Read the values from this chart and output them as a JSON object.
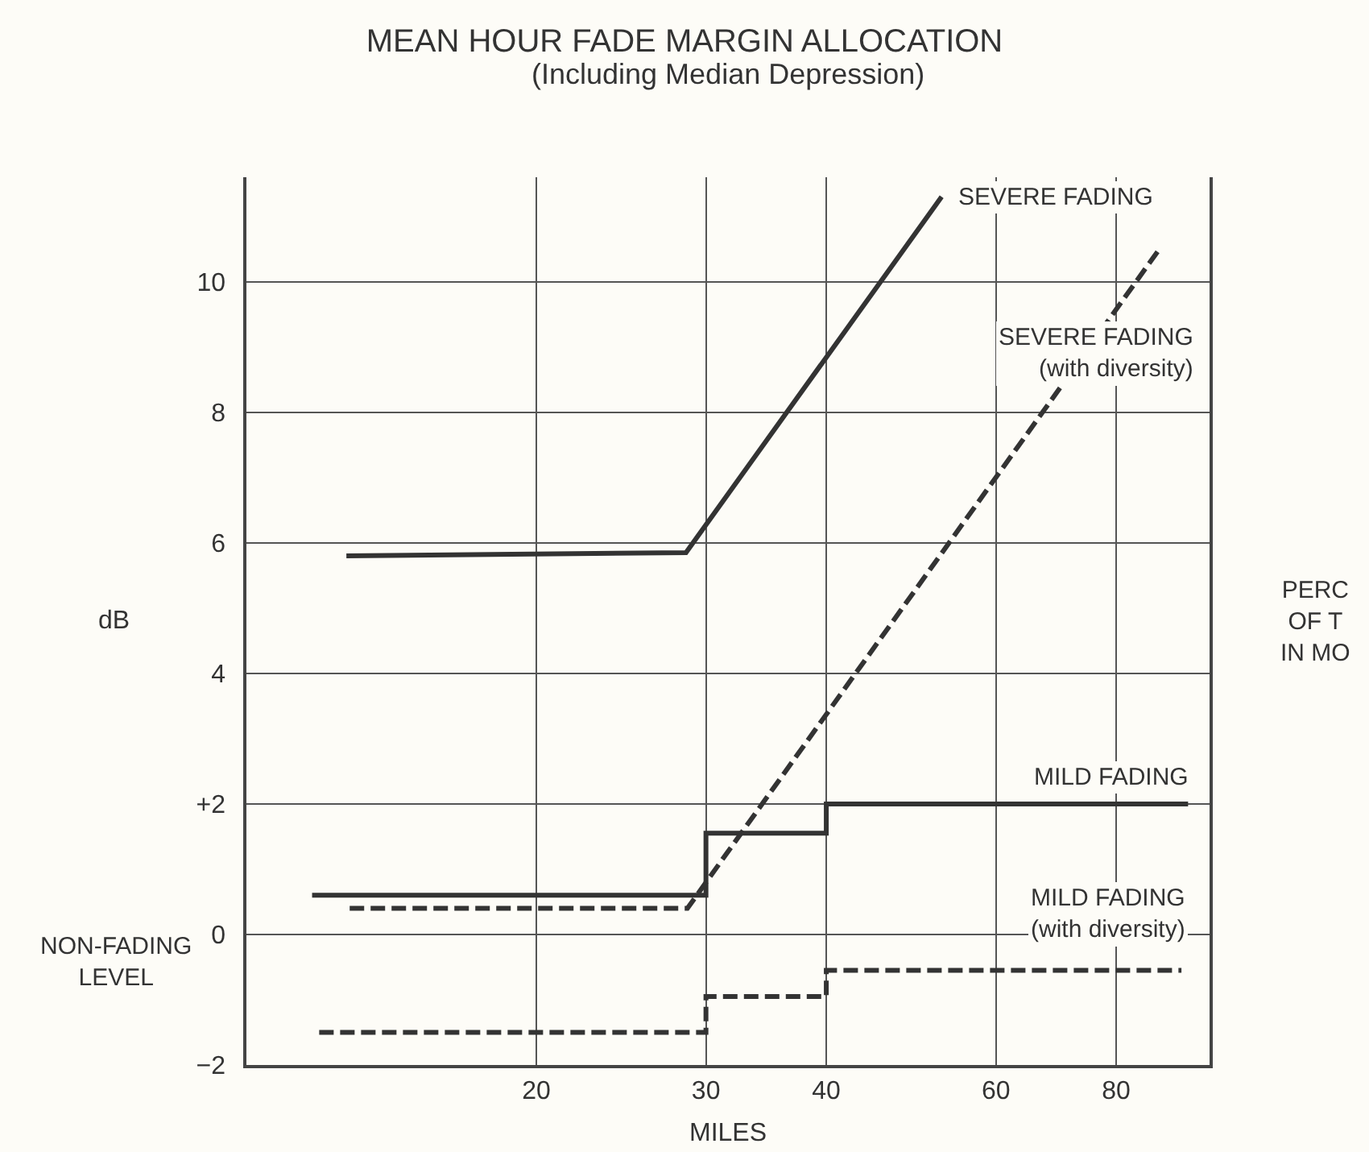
{
  "chart_data": {
    "type": "line",
    "title": "MEAN HOUR FADE MARGIN ALLOCATION",
    "subtitle": "(Including Median Depression)",
    "xlabel": "MILES",
    "ylabel": "dB",
    "log": "x",
    "grid": true,
    "legend": false,
    "marker": "none",
    "xlim": [
      10,
      100
    ],
    "xticks": [
      20,
      30,
      40,
      60,
      80
    ],
    "ylim": [
      -2,
      11.6
    ],
    "yticks": [
      {
        "value": -2,
        "label": "−2"
      },
      0,
      {
        "value": 2,
        "label": "+2"
      },
      4,
      6,
      8,
      10
    ],
    "series": [
      {
        "name": "SEVERE FADING",
        "color": "#333333",
        "line_style": "solid",
        "x": [
          12.7,
          28.6,
          52.7
        ],
        "values": [
          5.8,
          5.85,
          11.3
        ]
      },
      {
        "name": "SEVERE FADING\n(with diversity)",
        "color": "#333333",
        "line_style": "dashed",
        "x": [
          12.8,
          28.7,
          88.7
        ],
        "values": [
          0.4,
          0.4,
          10.5
        ]
      },
      {
        "name": "MILD FADING",
        "color": "#333333",
        "line_style": "solid",
        "x": [
          11.7,
          30,
          30,
          40,
          40,
          95
        ],
        "values": [
          0.6,
          0.6,
          1.55,
          1.55,
          2.0,
          2.0
        ]
      },
      {
        "name": "MILD FADING\n(with diversity)",
        "color": "#333333",
        "line_style": "dashed",
        "x": [
          11.9,
          30,
          30,
          40,
          40,
          93.5
        ],
        "values": [
          -1.5,
          -1.5,
          -0.95,
          -0.95,
          -0.55,
          -0.55
        ]
      }
    ],
    "annotations": [
      "NON-FADING\nLEVEL",
      "PERC\nOF T\nIN MO"
    ]
  }
}
